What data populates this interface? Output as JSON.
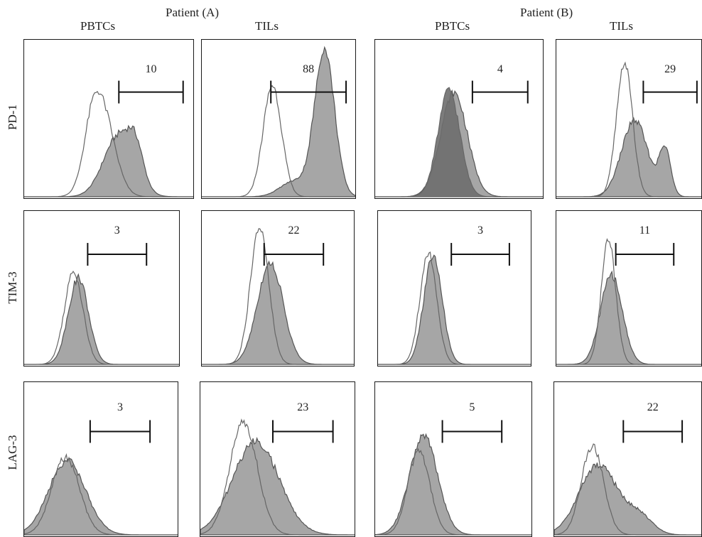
{
  "headers": {
    "patient_a": "Patient (A)",
    "patient_b": "Patient (B)",
    "columns": [
      "PBTCs",
      "TILs",
      "PBTCs",
      "TILs"
    ]
  },
  "rows": [
    "PD-1",
    "TIM-3",
    "LAG-3"
  ],
  "colors": {
    "filled_fill": "#a6a6a6",
    "filled_stroke": "#555555",
    "open_stroke": "#666666",
    "overlap_fill": "#6e6e6e",
    "gate": "#111111"
  },
  "chart_data": {
    "type": "area",
    "description_type": "flow-cytometry-histogram-grid",
    "panels": [
      {
        "row": "PD-1",
        "column": "PBTCs",
        "patient": "Patient (A)",
        "gate_percent": "10",
        "gate_value": 10,
        "open": {
          "center": 0.46,
          "width": 0.075,
          "height": 0.55,
          "shoulder": {
            "center": 0.4,
            "width": 0.05,
            "height": 0.22
          }
        },
        "filled": {
          "center": 0.56,
          "width": 0.09,
          "height": 0.4,
          "shoulder": {
            "center": 0.66,
            "width": 0.045,
            "height": 0.2
          }
        }
      },
      {
        "row": "PD-1",
        "column": "TILs",
        "patient": "Patient (A)",
        "gate_percent": "88",
        "gate_value": 88,
        "open": {
          "center": 0.46,
          "width": 0.06,
          "height": 0.73,
          "shoulder": null
        },
        "filled": {
          "center": 0.8,
          "width": 0.065,
          "height": 0.96,
          "shoulder": {
            "center": 0.6,
            "width": 0.09,
            "height": 0.1
          }
        }
      },
      {
        "row": "PD-1",
        "column": "PBTCs",
        "patient": "Patient (B)",
        "gate_percent": "4",
        "gate_value": 4,
        "open": {
          "center": 0.44,
          "width": 0.065,
          "height": 0.7,
          "shoulder": null
        },
        "filled": {
          "center": 0.47,
          "width": 0.08,
          "height": 0.68,
          "shoulder": null
        },
        "overlap_dark": true
      },
      {
        "row": "PD-1",
        "column": "TILs",
        "patient": "Patient (B)",
        "gate_percent": "29",
        "gate_value": 29,
        "open": {
          "center": 0.47,
          "width": 0.055,
          "height": 0.88,
          "shoulder": null
        },
        "filled": {
          "center": 0.54,
          "width": 0.09,
          "height": 0.5,
          "shoulder": {
            "center": 0.75,
            "width": 0.04,
            "height": 0.3
          }
        }
      },
      {
        "row": "TIM-3",
        "column": "PBTCs",
        "patient": "Patient (A)",
        "gate_percent": "3",
        "gate_value": 3,
        "open": {
          "center": 0.32,
          "width": 0.06,
          "height": 0.62,
          "shoulder": null
        },
        "filled": {
          "center": 0.35,
          "width": 0.065,
          "height": 0.58,
          "shoulder": null
        }
      },
      {
        "row": "TIM-3",
        "column": "TILs",
        "patient": "Patient (A)",
        "gate_percent": "22",
        "gate_value": 22,
        "open": {
          "center": 0.38,
          "width": 0.06,
          "height": 0.92,
          "shoulder": null
        },
        "filled": {
          "center": 0.45,
          "width": 0.085,
          "height": 0.68,
          "shoulder": null
        }
      },
      {
        "row": "TIM-3",
        "column": "PBTCs",
        "patient": "Patient (B)",
        "gate_percent": "3",
        "gate_value": 3,
        "open": {
          "center": 0.33,
          "width": 0.055,
          "height": 0.75,
          "shoulder": null
        },
        "filled": {
          "center": 0.36,
          "width": 0.06,
          "height": 0.73,
          "shoulder": null
        }
      },
      {
        "row": "TIM-3",
        "column": "TILs",
        "patient": "Patient (B)",
        "gate_percent": "11",
        "gate_value": 11,
        "open": {
          "center": 0.36,
          "width": 0.05,
          "height": 0.84,
          "shoulder": null
        },
        "filled": {
          "center": 0.38,
          "width": 0.075,
          "height": 0.6,
          "shoulder": null
        }
      },
      {
        "row": "LAG-3",
        "column": "PBTCs",
        "patient": "Patient (A)",
        "gate_percent": "3",
        "gate_value": 3,
        "open": {
          "center": 0.27,
          "width": 0.09,
          "height": 0.52,
          "shoulder": null
        },
        "filled": {
          "center": 0.28,
          "width": 0.12,
          "height": 0.5,
          "shoulder": null
        }
      },
      {
        "row": "LAG-3",
        "column": "TILs",
        "patient": "Patient (A)",
        "gate_percent": "23",
        "gate_value": 23,
        "open": {
          "center": 0.28,
          "width": 0.09,
          "height": 0.76,
          "shoulder": null
        },
        "filled": {
          "center": 0.36,
          "width": 0.15,
          "height": 0.63,
          "shoulder": null
        }
      },
      {
        "row": "LAG-3",
        "column": "PBTCs",
        "patient": "Patient (B)",
        "gate_percent": "5",
        "gate_value": 5,
        "open": {
          "center": 0.28,
          "width": 0.07,
          "height": 0.57,
          "shoulder": null
        },
        "filled": {
          "center": 0.31,
          "width": 0.09,
          "height": 0.67,
          "shoulder": null
        }
      },
      {
        "row": "LAG-3",
        "column": "TILs",
        "patient": "Patient (B)",
        "gate_percent": "22",
        "gate_value": 22,
        "open": {
          "center": 0.26,
          "width": 0.075,
          "height": 0.6,
          "shoulder": null
        },
        "filled": {
          "center": 0.3,
          "width": 0.13,
          "height": 0.47,
          "shoulder": {
            "center": 0.58,
            "width": 0.09,
            "height": 0.12
          }
        }
      }
    ]
  }
}
